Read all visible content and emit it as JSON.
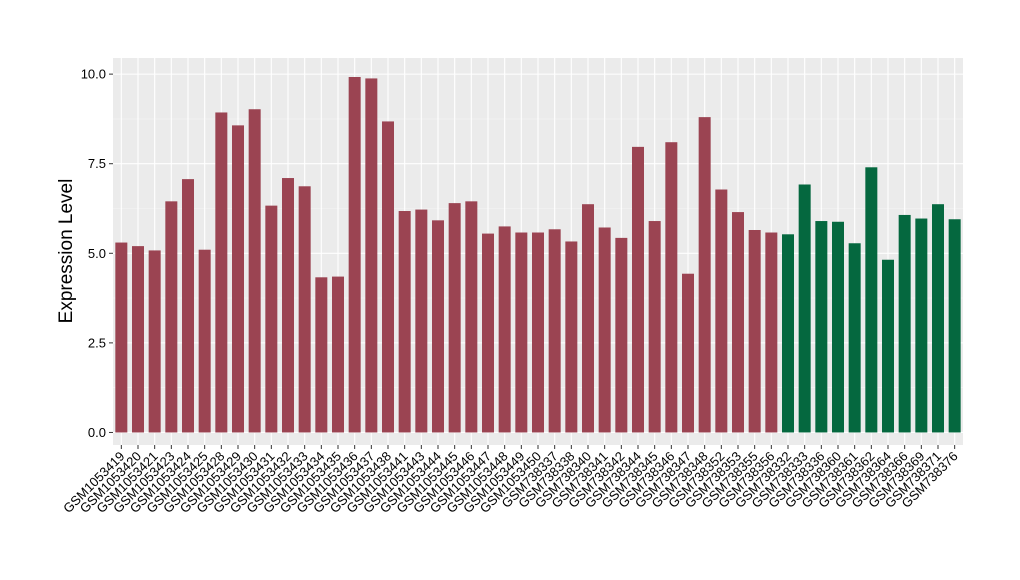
{
  "chart_data": {
    "type": "bar",
    "title": "",
    "xlabel": "",
    "ylabel": "Expression Level",
    "ylim": [
      -0.35,
      10.45
    ],
    "yticks": [
      0.0,
      2.5,
      5.0,
      7.5,
      10.0
    ],
    "ytick_labels": [
      "0.0",
      "2.5",
      "5.0",
      "7.5",
      "10.0"
    ],
    "grid": true,
    "legend": "none",
    "categories": [
      "GSM1053419",
      "GSM1053420",
      "GSM1053421",
      "GSM1053423",
      "GSM1053424",
      "GSM1053425",
      "GSM1053428",
      "GSM1053429",
      "GSM1053430",
      "GSM1053431",
      "GSM1053432",
      "GSM1053433",
      "GSM1053434",
      "GSM1053435",
      "GSM1053436",
      "GSM1053437",
      "GSM1053438",
      "GSM1053441",
      "GSM1053443",
      "GSM1053444",
      "GSM1053445",
      "GSM1053446",
      "GSM1053447",
      "GSM1053448",
      "GSM1053449",
      "GSM1053450",
      "GSM738337",
      "GSM738338",
      "GSM738340",
      "GSM738341",
      "GSM738342",
      "GSM738344",
      "GSM738345",
      "GSM738346",
      "GSM738347",
      "GSM738348",
      "GSM738352",
      "GSM738353",
      "GSM738355",
      "GSM738356",
      "GSM738332",
      "GSM738333",
      "GSM738336",
      "GSM738360",
      "GSM738361",
      "GSM738362",
      "GSM738364",
      "GSM738366",
      "GSM738369",
      "GSM738371",
      "GSM738376"
    ],
    "values": [
      5.3,
      5.2,
      5.08,
      6.45,
      7.07,
      5.1,
      8.93,
      8.57,
      9.02,
      6.33,
      7.1,
      6.87,
      4.33,
      4.35,
      9.92,
      9.88,
      8.68,
      6.18,
      6.22,
      5.92,
      6.4,
      6.45,
      5.55,
      5.75,
      5.58,
      5.58,
      5.67,
      5.33,
      6.37,
      5.72,
      5.43,
      7.97,
      5.9,
      8.1,
      4.43,
      8.8,
      6.78,
      6.15,
      5.65,
      5.58,
      5.53,
      6.92,
      5.9,
      5.88,
      5.28,
      7.4,
      4.82,
      6.07,
      5.97,
      6.37,
      5.95
    ],
    "groups": [
      "red",
      "red",
      "red",
      "red",
      "red",
      "red",
      "red",
      "red",
      "red",
      "red",
      "red",
      "red",
      "red",
      "red",
      "red",
      "red",
      "red",
      "red",
      "red",
      "red",
      "red",
      "red",
      "red",
      "red",
      "red",
      "red",
      "red",
      "red",
      "red",
      "red",
      "red",
      "red",
      "red",
      "red",
      "red",
      "red",
      "red",
      "red",
      "red",
      "red",
      "green",
      "green",
      "green",
      "green",
      "green",
      "green",
      "green",
      "green",
      "green",
      "green",
      "green"
    ],
    "colors": {
      "red": "#9b4452",
      "green": "#05683f",
      "panel": "#ebebeb",
      "grid_major": "#ffffff",
      "grid_minor": "#f5f5f5",
      "tick": "#333333"
    }
  }
}
